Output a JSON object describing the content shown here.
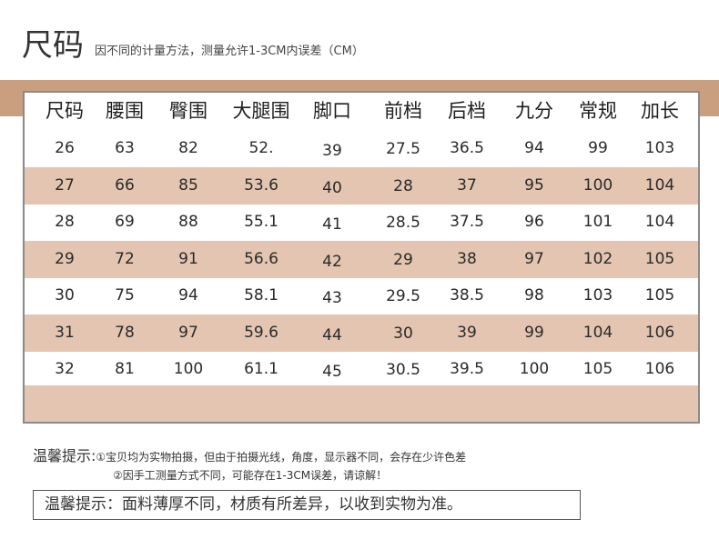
{
  "header": {
    "title": "尺码",
    "subtitle": "因不同的计量方法，测量允许1-3CM内误差（CM）"
  },
  "table": {
    "columns": [
      "尺码",
      "腰围",
      "臀围",
      "大腿围",
      "脚口",
      "前档",
      "后档",
      "九分",
      "常规",
      "加长"
    ],
    "rows": [
      [
        "26",
        "63",
        "82",
        "52.",
        "39",
        "27.5",
        "36.5",
        "94",
        "99",
        "103"
      ],
      [
        "27",
        "66",
        "85",
        "53.6",
        "40",
        "28",
        "37",
        "95",
        "100",
        "104"
      ],
      [
        "28",
        "69",
        "88",
        "55.1",
        "41",
        "28.5",
        "37.5",
        "96",
        "101",
        "104"
      ],
      [
        "29",
        "72",
        "91",
        "56.6",
        "42",
        "29",
        "38",
        "97",
        "102",
        "105"
      ],
      [
        "30",
        "75",
        "94",
        "58.1",
        "43",
        "29.5",
        "38.5",
        "98",
        "103",
        "105"
      ],
      [
        "31",
        "78",
        "97",
        "59.6",
        "44",
        "30",
        "39",
        "99",
        "104",
        "106"
      ],
      [
        "32",
        "81",
        "100",
        "61.1",
        "45",
        "30.5",
        "39.5",
        "100",
        "105",
        "106"
      ]
    ]
  },
  "tips": {
    "lead": "温馨提示:",
    "item1": "①宝贝均为实物拍摄，但由于拍摄光线，角度，显示器不同，会存在少许色差",
    "item2": "②因手工测量方式不同，可能存在1-3CM误差，请谅解！"
  },
  "notice": "温馨提示：面料薄厚不同，材质有所差异，以收到实物为准。",
  "colors": {
    "band": "#c99f80",
    "shaded_row": "#e3c5b1",
    "border": "#8a8a8a"
  }
}
